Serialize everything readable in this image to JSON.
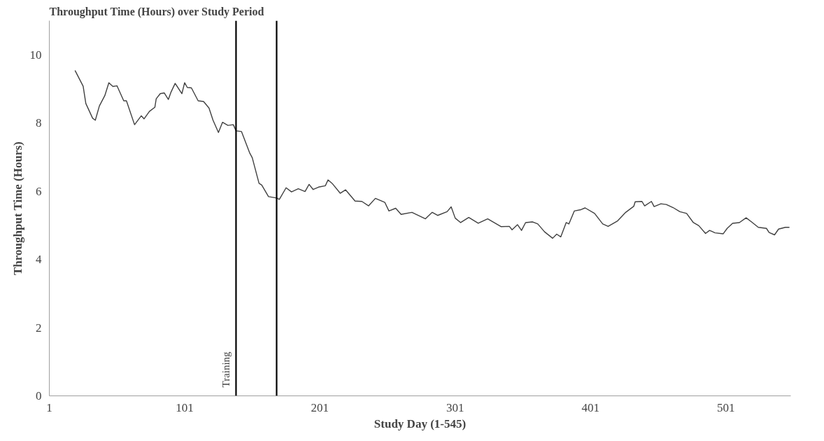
{
  "chart_data": {
    "type": "line",
    "title": "Throughput Time (Hours) over Study Period",
    "xlabel": "Study Day (1-545)",
    "ylabel": "Throughput Time (Hours)",
    "xlim": [
      1,
      549
    ],
    "ylim": [
      0,
      11
    ],
    "xticks": [
      1,
      101,
      201,
      301,
      401,
      501
    ],
    "yticks": [
      0,
      2,
      4,
      6,
      8,
      10
    ],
    "grid": false,
    "marker": "none",
    "line_style": "solid",
    "ref_lines": [
      {
        "axis": "x",
        "value": 139,
        "label": "Training",
        "color": "#000000"
      },
      {
        "axis": "x",
        "value": 169,
        "color": "#000000"
      }
    ],
    "series": [
      {
        "color": "#404040",
        "x": [
          20,
          26,
          28,
          33,
          35,
          38,
          42,
          45,
          48,
          51,
          56,
          58,
          64,
          69,
          71,
          75,
          79,
          80,
          83,
          86,
          89,
          91,
          94,
          99,
          101,
          103,
          106,
          111,
          115,
          119,
          122,
          126,
          129,
          133,
          137,
          139,
          143,
          149,
          151,
          156,
          158,
          163,
          169,
          171,
          176,
          180,
          185,
          190,
          193,
          196,
          200,
          205,
          207,
          210,
          216,
          220,
          227,
          232,
          237,
          242,
          249,
          252,
          257,
          261,
          269,
          279,
          284,
          288,
          295,
          298,
          301,
          305,
          311,
          318,
          325,
          335,
          341,
          343,
          347,
          350,
          353,
          358,
          362,
          367,
          373,
          376,
          379,
          383,
          385,
          389,
          394,
          397,
          404,
          410,
          414,
          421,
          427,
          433,
          434,
          439,
          441,
          446,
          448,
          453,
          457,
          462,
          467,
          472,
          477,
          481,
          486,
          489,
          493,
          499,
          502,
          506,
          511,
          516,
          520,
          525,
          531,
          533,
          537,
          540,
          545,
          548
        ],
        "values": [
          9.54,
          9.08,
          8.57,
          8.14,
          8.08,
          8.5,
          8.8,
          9.18,
          9.07,
          9.09,
          8.65,
          8.65,
          7.95,
          8.21,
          8.12,
          8.34,
          8.46,
          8.71,
          8.86,
          8.88,
          8.69,
          8.91,
          9.16,
          8.86,
          9.18,
          9.04,
          9.03,
          8.65,
          8.63,
          8.44,
          8.08,
          7.72,
          8.02,
          7.93,
          7.95,
          7.77,
          7.75,
          7.13,
          6.98,
          6.23,
          6.18,
          5.84,
          5.8,
          5.76,
          6.1,
          5.98,
          6.07,
          5.99,
          6.2,
          6.05,
          6.12,
          6.16,
          6.33,
          6.23,
          5.94,
          6.04,
          5.71,
          5.7,
          5.57,
          5.79,
          5.67,
          5.42,
          5.5,
          5.32,
          5.38,
          5.19,
          5.38,
          5.29,
          5.4,
          5.54,
          5.21,
          5.08,
          5.23,
          5.06,
          5.19,
          4.96,
          4.97,
          4.87,
          5.02,
          4.85,
          5.08,
          5.1,
          5.04,
          4.81,
          4.62,
          4.74,
          4.66,
          5.08,
          5.04,
          5.42,
          5.46,
          5.51,
          5.35,
          5.04,
          4.97,
          5.13,
          5.38,
          5.56,
          5.69,
          5.7,
          5.57,
          5.7,
          5.55,
          5.63,
          5.61,
          5.52,
          5.4,
          5.35,
          5.08,
          4.99,
          4.76,
          4.85,
          4.78,
          4.75,
          4.91,
          5.06,
          5.08,
          5.22,
          5.1,
          4.94,
          4.91,
          4.79,
          4.72,
          4.89,
          4.94,
          4.94
        ]
      }
    ]
  }
}
